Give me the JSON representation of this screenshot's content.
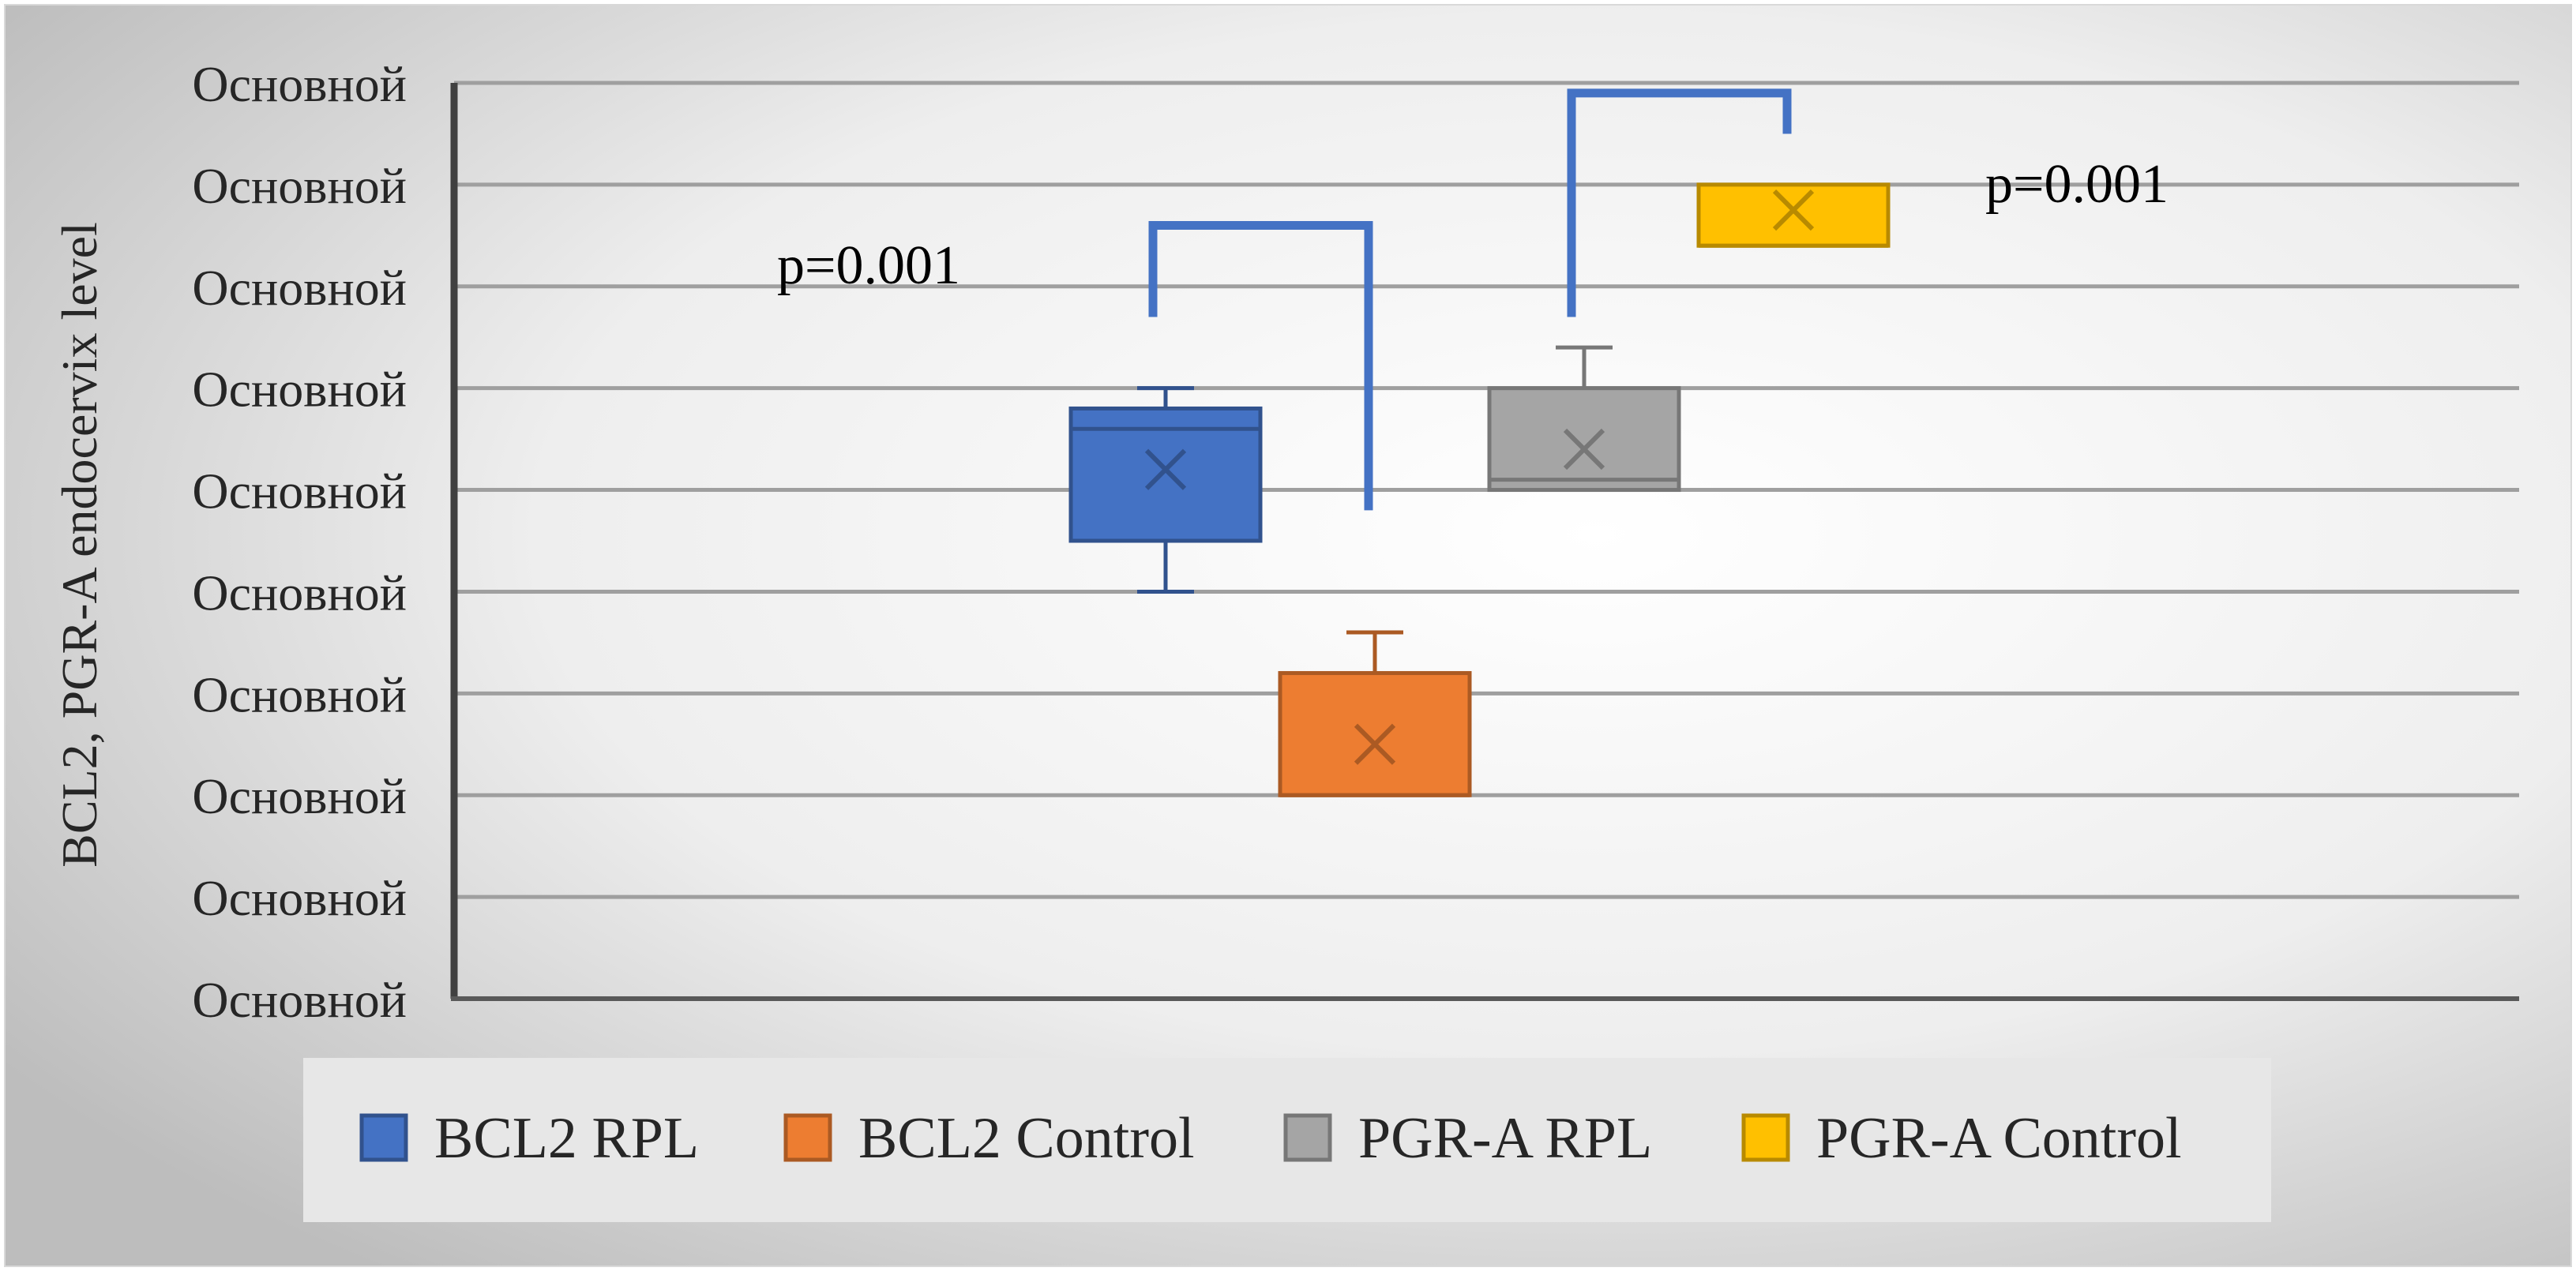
{
  "chart_data": {
    "type": "box",
    "title": "",
    "ylabel": "BCL2, PGR-A endocervix level",
    "ytick_labels": [
      "Основной",
      "Основной",
      "Основной",
      "Основной",
      "Основной",
      "Основной",
      "Основной",
      "Основной",
      "Основной",
      "Основной"
    ],
    "ylim": [
      0,
      9
    ],
    "grid": true,
    "legend_position": "bottom",
    "series": [
      {
        "name": "BCL2 RPL",
        "color": "#4472C4",
        "min": 4.0,
        "q1": 4.5,
        "median": 5.6,
        "q3": 5.8,
        "max": 6.0,
        "mean": 5.2,
        "group": 1
      },
      {
        "name": "BCL2 Control",
        "color": "#ED7D31",
        "min": 2.0,
        "q1": 2.0,
        "median": 2.0,
        "q3": 3.2,
        "max": 3.6,
        "mean": 2.5,
        "group": 2
      },
      {
        "name": "PGR-A RPL",
        "color": "#A5A5A5",
        "min": 5.0,
        "q1": 5.0,
        "median": 5.1,
        "q3": 6.0,
        "max": 6.4,
        "mean": 5.4,
        "group": 3
      },
      {
        "name": "PGR-A Control",
        "color": "#FFC000",
        "min": 7.4,
        "q1": 7.4,
        "median": 7.4,
        "q3": 8.0,
        "max": 8.0,
        "mean": 7.75,
        "group": 4
      }
    ],
    "annotations": [
      {
        "text": "p=0.001",
        "color": "#4472C4",
        "from_group": 1,
        "to_group": 2,
        "bracket_top": 7.6,
        "from_end": 6.7,
        "to_end": 4.8,
        "label_side": "left",
        "label_y": 7.2
      },
      {
        "text": "p=0.001",
        "color": "#4472C4",
        "from_group": 3,
        "to_group": 4,
        "bracket_top": 8.9,
        "from_end": 6.7,
        "to_end": 8.5,
        "label_side": "right",
        "label_y": 8.0
      }
    ]
  }
}
